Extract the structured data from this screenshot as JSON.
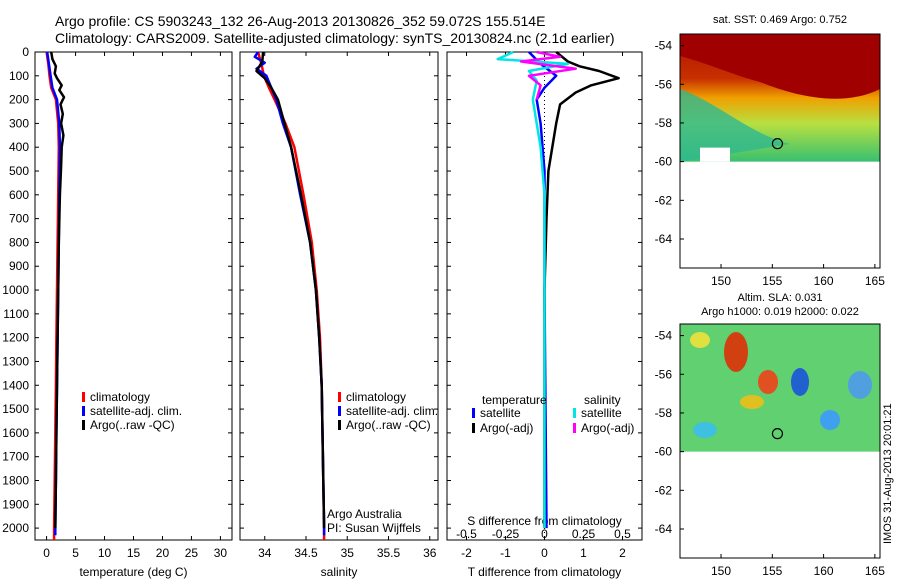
{
  "header": {
    "line1": "Argo profile: CS 5903243_132 26-Aug-2013 20130826_352 59.072S 155.514E",
    "line2": "Climatology: CARS2009. Satellite-adjusted climatology: synTS_20130824.nc (2.1d earlier)"
  },
  "chart_data": [
    {
      "type": "line",
      "title": "",
      "xlabel": "temperature (deg C)",
      "ylabel": "",
      "xlim": [
        -2,
        32
      ],
      "ylim": [
        2050,
        0
      ],
      "xticks": [
        0,
        5,
        10,
        15,
        20,
        25,
        30
      ],
      "yticks": [
        0,
        100,
        200,
        300,
        400,
        500,
        600,
        700,
        800,
        900,
        1000,
        1100,
        1200,
        1300,
        1400,
        1500,
        1600,
        1700,
        1800,
        1900,
        2000
      ],
      "legend": [
        "climatology",
        "satellite-adj. clim.",
        "Argo(..raw -QC)"
      ],
      "series": [
        {
          "name": "climatology",
          "color": "#ff0000",
          "points": [
            [
              0,
              0
            ],
            [
              0.3,
              50
            ],
            [
              0.5,
              100
            ],
            [
              0.8,
              150
            ],
            [
              1.6,
              200
            ],
            [
              2.0,
              300
            ],
            [
              2.1,
              400
            ],
            [
              2.0,
              600
            ],
            [
              1.9,
              800
            ],
            [
              1.8,
              1000
            ],
            [
              1.7,
              1200
            ],
            [
              1.6,
              1400
            ],
            [
              1.5,
              1600
            ],
            [
              1.4,
              1800
            ],
            [
              1.3,
              2000
            ],
            [
              1.3,
              2050
            ]
          ]
        },
        {
          "name": "satellite-adj. clim.",
          "color": "#0000ff",
          "points": [
            [
              0.1,
              0
            ],
            [
              0.4,
              50
            ],
            [
              0.7,
              100
            ],
            [
              1.0,
              150
            ],
            [
              1.8,
              200
            ],
            [
              2.2,
              300
            ],
            [
              2.3,
              400
            ],
            [
              2.2,
              600
            ],
            [
              2.1,
              800
            ],
            [
              2.0,
              1000
            ],
            [
              1.9,
              1200
            ],
            [
              1.8,
              1400
            ],
            [
              1.7,
              1600
            ],
            [
              1.6,
              1800
            ],
            [
              1.5,
              2000
            ],
            [
              1.5,
              2030
            ]
          ]
        },
        {
          "name": "Argo(..raw -QC)",
          "color": "#000000",
          "points": [
            [
              0.8,
              0
            ],
            [
              1.0,
              30
            ],
            [
              1.6,
              60
            ],
            [
              1.4,
              90
            ],
            [
              1.8,
              110
            ],
            [
              2.6,
              140
            ],
            [
              2.2,
              160
            ],
            [
              3.0,
              190
            ],
            [
              2.4,
              220
            ],
            [
              2.8,
              260
            ],
            [
              2.5,
              300
            ],
            [
              2.9,
              350
            ],
            [
              2.6,
              400
            ],
            [
              2.5,
              480
            ],
            [
              2.3,
              600
            ],
            [
              2.1,
              800
            ],
            [
              2.0,
              1000
            ],
            [
              1.9,
              1200
            ],
            [
              1.8,
              1400
            ],
            [
              1.7,
              1600
            ],
            [
              1.6,
              1800
            ],
            [
              1.5,
              2000
            ]
          ]
        }
      ]
    },
    {
      "type": "line",
      "title": "",
      "xlabel": "salinity",
      "ylabel": "",
      "xlim": [
        33.7,
        36.1
      ],
      "ylim": [
        2050,
        0
      ],
      "xticks": [
        34,
        34.5,
        35,
        35.5,
        36
      ],
      "xtick_labels": [
        "34",
        "34.5",
        "35",
        "35.5",
        "36"
      ],
      "legend": [
        "climatology",
        "satellite-adj. clim.",
        "Argo(..raw -QC)"
      ],
      "annotation": [
        "Argo Australia",
        "PI: Susan Wijffels"
      ],
      "series": [
        {
          "name": "climatology",
          "color": "#ff0000",
          "points": [
            [
              33.92,
              0
            ],
            [
              33.96,
              50
            ],
            [
              33.99,
              100
            ],
            [
              34.05,
              150
            ],
            [
              34.12,
              200
            ],
            [
              34.25,
              300
            ],
            [
              34.36,
              400
            ],
            [
              34.47,
              600
            ],
            [
              34.57,
              800
            ],
            [
              34.63,
              1000
            ],
            [
              34.67,
              1200
            ],
            [
              34.69,
              1400
            ],
            [
              34.7,
              1600
            ],
            [
              34.71,
              1800
            ],
            [
              34.72,
              2000
            ],
            [
              34.72,
              2050
            ]
          ]
        },
        {
          "name": "satellite-adj. clim.",
          "color": "#0000ff",
          "points": [
            [
              33.92,
              0
            ],
            [
              33.88,
              20
            ],
            [
              34.0,
              45
            ],
            [
              33.9,
              70
            ],
            [
              34.02,
              100
            ],
            [
              34.08,
              150
            ],
            [
              34.14,
              200
            ],
            [
              34.22,
              300
            ],
            [
              34.32,
              400
            ],
            [
              34.43,
              600
            ],
            [
              34.55,
              800
            ],
            [
              34.62,
              1000
            ],
            [
              34.66,
              1200
            ],
            [
              34.69,
              1400
            ],
            [
              34.7,
              1600
            ],
            [
              34.71,
              1800
            ],
            [
              34.72,
              2000
            ],
            [
              34.72,
              2030
            ]
          ]
        },
        {
          "name": "Argo(..raw -QC)",
          "color": "#000000",
          "points": [
            [
              33.98,
              0
            ],
            [
              33.97,
              40
            ],
            [
              33.9,
              80
            ],
            [
              34.0,
              110
            ],
            [
              34.08,
              150
            ],
            [
              34.16,
              200
            ],
            [
              34.24,
              300
            ],
            [
              34.32,
              400
            ],
            [
              34.44,
              600
            ],
            [
              34.55,
              800
            ],
            [
              34.62,
              1000
            ],
            [
              34.66,
              1200
            ],
            [
              34.69,
              1400
            ],
            [
              34.7,
              1600
            ],
            [
              34.71,
              1800
            ],
            [
              34.72,
              2000
            ]
          ]
        }
      ]
    },
    {
      "type": "line",
      "title": "",
      "xlabel": "T difference from climatology",
      "ylabel": "",
      "xlim": [
        -2.5,
        2.5
      ],
      "ylim": [
        2050,
        0
      ],
      "xticks": [
        -2,
        -1,
        0,
        1,
        2
      ],
      "top_xlabel": "S difference from climatology",
      "top_xtick_labels": [
        "-0.5",
        "-0.25",
        "0",
        "0.25",
        "0.5"
      ],
      "legend_left_title": "temperature",
      "legend_right_title": "salinity",
      "legend": [
        "satellite",
        "Argo(-adj)",
        "satellite",
        "Argo(-adj)"
      ],
      "series": [
        {
          "name": "satellite",
          "color": "#0000ff",
          "points": [
            [
              -0.4,
              0
            ],
            [
              -0.1,
              50
            ],
            [
              0.3,
              100
            ],
            [
              0.0,
              150
            ],
            [
              -0.2,
              200
            ],
            [
              -0.1,
              300
            ],
            [
              0.0,
              500
            ],
            [
              0.0,
              1000
            ],
            [
              0.05,
              2000
            ]
          ]
        },
        {
          "name": "Argo(-adj)",
          "color": "#000000",
          "points": [
            [
              0.3,
              0
            ],
            [
              0.6,
              40
            ],
            [
              0.9,
              60
            ],
            [
              1.4,
              80
            ],
            [
              1.9,
              110
            ],
            [
              1.2,
              140
            ],
            [
              0.8,
              170
            ],
            [
              0.4,
              220
            ],
            [
              0.3,
              300
            ],
            [
              0.2,
              400
            ],
            [
              0.1,
              500
            ],
            [
              0.05,
              700
            ],
            [
              0.0,
              1000
            ],
            [
              0.0,
              2000
            ]
          ]
        },
        {
          "name": "satellite",
          "color": "#00e5e5",
          "points": [
            [
              -0.8,
              0
            ],
            [
              -1.2,
              30
            ],
            [
              0.6,
              50
            ],
            [
              -0.4,
              80
            ],
            [
              -0.2,
              120
            ],
            [
              -0.3,
              200
            ],
            [
              -0.2,
              300
            ],
            [
              -0.1,
              400
            ],
            [
              0.0,
              600
            ],
            [
              0.0,
              1000
            ],
            [
              0.0,
              2000
            ]
          ]
        },
        {
          "name": "Argo(-adj)",
          "color": "#ff00ff",
          "points": [
            [
              -0.2,
              0
            ],
            [
              0.4,
              20
            ],
            [
              -0.6,
              40
            ],
            [
              0.8,
              70
            ],
            [
              -0.4,
              100
            ],
            [
              -0.1,
              140
            ],
            [
              -0.2,
              200
            ]
          ]
        }
      ]
    },
    {
      "type": "heatmap",
      "title": "sat. SST: 0.469 Argo: 0.752",
      "xticks": [
        150,
        155,
        160,
        165
      ],
      "yticks": [
        -54,
        -56,
        -58,
        -60,
        -62,
        -64
      ],
      "xlim": [
        146,
        165.5
      ],
      "ylim": [
        -65.5,
        -53.4
      ],
      "marker": {
        "lon": 155.5,
        "lat": -59.07
      }
    },
    {
      "type": "heatmap",
      "title": "Altim. SLA: 0.031",
      "subtitle": "Argo h1000: 0.019 h2000: 0.022",
      "xticks": [
        150,
        155,
        160,
        165
      ],
      "yticks": [
        -54,
        -56,
        -58,
        -60,
        -62,
        -64
      ],
      "xlim": [
        146,
        165.5
      ],
      "ylim": [
        -65.5,
        -53.4
      ],
      "marker": {
        "lon": 155.5,
        "lat": -59.07
      }
    }
  ],
  "watermark": "IMOS 31-Aug-2013 20:01:21"
}
